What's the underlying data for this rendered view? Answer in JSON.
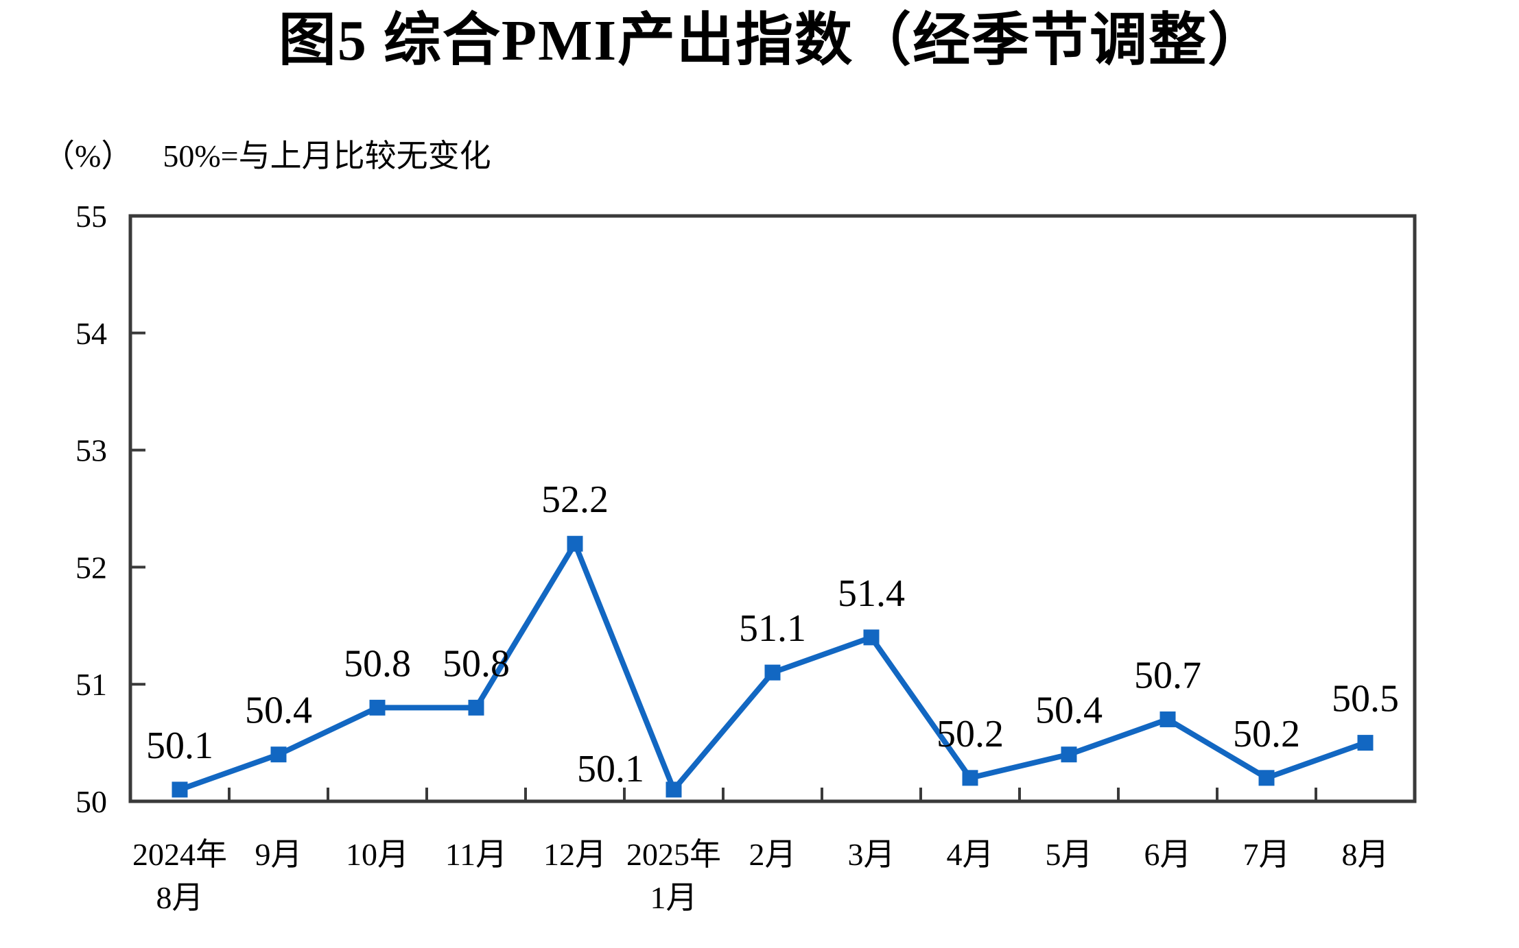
{
  "header": {
    "title": "图5 综合PMI产出指数（经季节调整）",
    "unit_label": "（%）",
    "note": "50%=与上月比较无变化"
  },
  "chart_data": {
    "type": "line",
    "title": "图5 综合PMI产出指数（经季节调整）",
    "subtitle": "（%） 50%=与上月比较无变化",
    "categories": [
      "2024年\n8月",
      "9月",
      "10月",
      "11月",
      "12月",
      "2025年\n1月",
      "2月",
      "3月",
      "4月",
      "5月",
      "6月",
      "7月",
      "8月"
    ],
    "series": [
      {
        "name": "综合PMI产出指数",
        "values": [
          50.1,
          50.4,
          50.8,
          50.8,
          52.2,
          50.1,
          51.1,
          51.4,
          50.2,
          50.4,
          50.7,
          50.2,
          50.5
        ]
      }
    ],
    "point_labels": [
      "50.1",
      "50.4",
      "50.8",
      "50.8",
      "52.2",
      "50.1",
      "51.1",
      "51.4",
      "50.2",
      "50.4",
      "50.7",
      "50.2",
      "50.5"
    ],
    "label_overrides": {
      "5": {
        "dx": -92,
        "dy": 34
      }
    },
    "yticks": [
      50,
      51,
      52,
      53,
      54,
      55
    ],
    "ylim": [
      50,
      55
    ],
    "xlabel": "",
    "ylabel": "（%）",
    "grid": false,
    "legend_position": "none",
    "line_color": "#1267C2",
    "marker": "square",
    "marker_color": "#1267C2",
    "axis_color": "#3a3a3a",
    "text_color": "#000000"
  }
}
